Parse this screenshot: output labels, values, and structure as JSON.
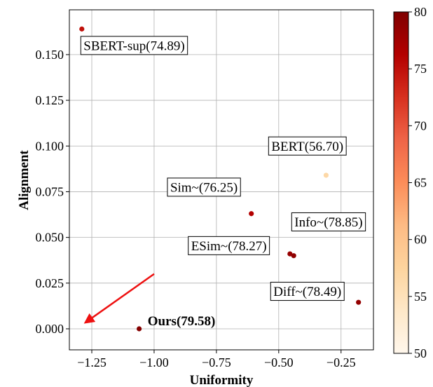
{
  "chart_data": {
    "type": "scatter",
    "title": "",
    "xlabel": "Uniformity",
    "ylabel": "Alignment",
    "xlim": [
      -1.34,
      -0.12
    ],
    "ylim": [
      -0.0115,
      0.1745
    ],
    "xticks": [
      -1.25,
      -1.0,
      -0.75,
      -0.5,
      -0.25
    ],
    "xtick_labels": [
      "−1.25",
      "−1.00",
      "−0.75",
      "−0.50",
      "−0.25"
    ],
    "yticks": [
      0.0,
      0.025,
      0.05,
      0.075,
      0.1,
      0.125,
      0.15
    ],
    "ytick_labels": [
      "0.000",
      "0.025",
      "0.050",
      "0.075",
      "0.100",
      "0.125",
      "0.150"
    ],
    "grid": true,
    "colorbar": {
      "range": [
        50,
        80
      ],
      "ticks": [
        50,
        55,
        60,
        65,
        70,
        75,
        80
      ],
      "tick_labels": [
        "50",
        "55",
        "60",
        "65",
        "70",
        "75",
        "80"
      ],
      "colormap": "OrRd"
    },
    "points": [
      {
        "x": -1.29,
        "y": 0.164,
        "score": 74.89
      },
      {
        "x": -0.31,
        "y": 0.084,
        "score": 56.7
      },
      {
        "x": -0.61,
        "y": 0.063,
        "score": 76.25
      },
      {
        "x": -0.44,
        "y": 0.04,
        "score": 78.85
      },
      {
        "x": -0.455,
        "y": 0.041,
        "score": 78.27
      },
      {
        "x": -0.18,
        "y": 0.0145,
        "score": 78.49
      },
      {
        "x": -1.06,
        "y": 0.0,
        "score": 79.58
      }
    ],
    "annotations": [
      {
        "text": "SBERT-sup(74.89)",
        "x": -1.08,
        "y": 0.155,
        "bold": false
      },
      {
        "text": "BERT(56.70)",
        "x": -0.385,
        "y": 0.1,
        "bold": false
      },
      {
        "text": "Sim~(76.25)",
        "x": -0.8,
        "y": 0.0775,
        "bold": false
      },
      {
        "text": "Info~(78.85)",
        "x": -0.3,
        "y": 0.0585,
        "bold": false
      },
      {
        "text": "ESim~(78.27)",
        "x": -0.7,
        "y": 0.0455,
        "bold": false
      },
      {
        "text": "Diff~(78.49)",
        "x": -0.385,
        "y": 0.0205,
        "bold": false
      },
      {
        "text": "Ours(79.58)",
        "x": -0.89,
        "y": 0.0045,
        "bold": true
      }
    ],
    "arrow": {
      "from": [
        -1.0,
        0.03
      ],
      "to": [
        -1.275,
        0.0035
      ],
      "color": "#ee1111"
    }
  }
}
